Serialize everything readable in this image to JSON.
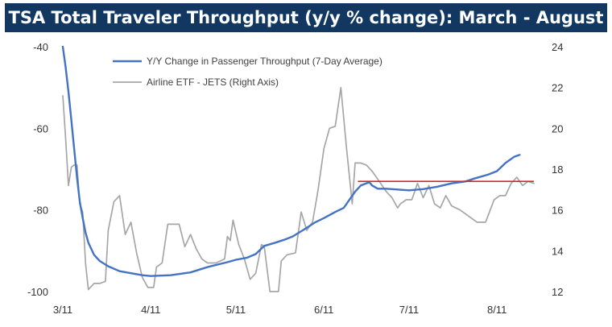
{
  "chart_data": {
    "type": "line",
    "title": "TSA Total Traveler Throughput (y/y % change): March - August",
    "x_ticks": [
      "3/11",
      "4/11",
      "5/11",
      "6/11",
      "7/11",
      "8/11"
    ],
    "y_left": {
      "ticks": [
        -40,
        -60,
        -80,
        -100
      ],
      "lim": [
        -100,
        -40
      ]
    },
    "y_right": {
      "ticks": [
        24,
        22,
        20,
        18,
        16,
        14,
        12
      ],
      "lim": [
        12,
        24
      ]
    },
    "reference_line": {
      "axis": "left",
      "value": -73,
      "from_date": "6/23",
      "to_date": "8/24",
      "color": "#d62b2b"
    },
    "legend_position": "top-center",
    "series": [
      {
        "name": "Y/Y Change in Passenger Throughput (7-Day Average)",
        "axis": "left",
        "color": "#4472c4",
        "points": [
          [
            "3/11",
            -40
          ],
          [
            "3/12",
            -45
          ],
          [
            "3/13",
            -51
          ],
          [
            "3/14",
            -58
          ],
          [
            "3/15",
            -65
          ],
          [
            "3/16",
            -72
          ],
          [
            "3/17",
            -78
          ],
          [
            "3/18",
            -82
          ],
          [
            "3/19",
            -85.5
          ],
          [
            "3/20",
            -88
          ],
          [
            "3/22",
            -91
          ],
          [
            "3/24",
            -92.5
          ],
          [
            "3/27",
            -93.8
          ],
          [
            "3/31",
            -95
          ],
          [
            "4/4",
            -95.5
          ],
          [
            "4/8",
            -96
          ],
          [
            "4/11",
            -96.2
          ],
          [
            "4/18",
            -96
          ],
          [
            "4/25",
            -95.3
          ],
          [
            "5/1",
            -94
          ],
          [
            "5/8",
            -92.8
          ],
          [
            "5/11",
            -92.2
          ],
          [
            "5/15",
            -91.7
          ],
          [
            "5/18",
            -90.8
          ],
          [
            "5/21",
            -88.8
          ],
          [
            "5/25",
            -88
          ],
          [
            "5/28",
            -87.3
          ],
          [
            "5/31",
            -86.5
          ],
          [
            "6/4",
            -84.8
          ],
          [
            "6/8",
            -83
          ],
          [
            "6/11",
            -82
          ],
          [
            "6/15",
            -80.5
          ],
          [
            "6/18",
            -79.5
          ],
          [
            "6/20",
            -77.5
          ],
          [
            "6/22",
            -75.5
          ],
          [
            "6/24",
            -74
          ],
          [
            "6/27",
            -73.2
          ],
          [
            "6/28",
            -74
          ],
          [
            "6/30",
            -74.8
          ],
          [
            "7/3",
            -74.8
          ],
          [
            "7/7",
            -75
          ],
          [
            "7/11",
            -75.2
          ],
          [
            "7/16",
            -74.9
          ],
          [
            "7/21",
            -74.3
          ],
          [
            "7/26",
            -73.5
          ],
          [
            "7/31",
            -73
          ],
          [
            "8/3",
            -72.3
          ],
          [
            "8/8",
            -71.3
          ],
          [
            "8/11",
            -70.5
          ],
          [
            "8/14",
            -68.5
          ],
          [
            "8/17",
            -67
          ],
          [
            "8/19",
            -66.5
          ]
        ]
      },
      {
        "name": "Airline ETF - JETS (Right Axis)",
        "axis": "right",
        "color": "#a6a6a6",
        "points": [
          [
            "3/11",
            21.6
          ],
          [
            "3/12",
            19.5
          ],
          [
            "3/13",
            17.2
          ],
          [
            "3/14",
            18.1
          ],
          [
            "3/15",
            18.2
          ],
          [
            "3/16",
            18.2
          ],
          [
            "3/17",
            16.3
          ],
          [
            "3/18",
            15.9
          ],
          [
            "3/19",
            13.4
          ],
          [
            "3/20",
            12.1
          ],
          [
            "3/22",
            12.4
          ],
          [
            "3/24",
            12.4
          ],
          [
            "3/26",
            12.5
          ],
          [
            "3/27",
            15
          ],
          [
            "3/29",
            16.4
          ],
          [
            "3/31",
            16.7
          ],
          [
            "4/2",
            14.8
          ],
          [
            "4/4",
            15.4
          ],
          [
            "4/6",
            13.9
          ],
          [
            "4/8",
            12.7
          ],
          [
            "4/10",
            12.2
          ],
          [
            "4/12",
            12.2
          ],
          [
            "4/13",
            13.2
          ],
          [
            "4/15",
            13.4
          ],
          [
            "4/17",
            15.3
          ],
          [
            "4/19",
            15.3
          ],
          [
            "4/21",
            15.3
          ],
          [
            "4/23",
            14.2
          ],
          [
            "4/25",
            14.8
          ],
          [
            "4/27",
            14.1
          ],
          [
            "4/29",
            13.6
          ],
          [
            "5/1",
            13.4
          ],
          [
            "5/4",
            13.4
          ],
          [
            "5/7",
            13.6
          ],
          [
            "5/8",
            14.7
          ],
          [
            "5/9",
            14.5
          ],
          [
            "5/10",
            15.5
          ],
          [
            "5/12",
            14.3
          ],
          [
            "5/14",
            13.6
          ],
          [
            "5/16",
            12.6
          ],
          [
            "5/18",
            12.9
          ],
          [
            "5/20",
            14.3
          ],
          [
            "5/21",
            14.2
          ],
          [
            "5/23",
            12
          ],
          [
            "5/26",
            12
          ],
          [
            "5/27",
            13.5
          ],
          [
            "5/29",
            13.8
          ],
          [
            "6/1",
            13.9
          ],
          [
            "6/3",
            15.9
          ],
          [
            "6/5",
            15
          ],
          [
            "6/7",
            15.4
          ],
          [
            "6/9",
            17
          ],
          [
            "6/11",
            19
          ],
          [
            "6/13",
            20
          ],
          [
            "6/15",
            20.1
          ],
          [
            "6/17",
            22
          ],
          [
            "6/19",
            19
          ],
          [
            "6/21",
            16.3
          ],
          [
            "6/22",
            18.3
          ],
          [
            "6/24",
            18.3
          ],
          [
            "6/26",
            18.2
          ],
          [
            "6/28",
            17.9
          ],
          [
            "7/1",
            17.3
          ],
          [
            "7/3",
            16.9
          ],
          [
            "7/5",
            16.6
          ],
          [
            "7/7",
            16.1
          ],
          [
            "7/8",
            16.3
          ],
          [
            "7/10",
            16.5
          ],
          [
            "7/12",
            16.5
          ],
          [
            "7/14",
            17.3
          ],
          [
            "7/16",
            16.6
          ],
          [
            "7/18",
            17.2
          ],
          [
            "7/20",
            16.3
          ],
          [
            "7/22",
            16.1
          ],
          [
            "7/24",
            16.7
          ],
          [
            "7/26",
            16.2
          ],
          [
            "7/29",
            16
          ],
          [
            "8/1",
            15.7
          ],
          [
            "8/4",
            15.4
          ],
          [
            "8/7",
            15.4
          ],
          [
            "8/10",
            16.5
          ],
          [
            "8/12",
            16.7
          ],
          [
            "8/14",
            16.7
          ],
          [
            "8/16",
            17.3
          ],
          [
            "8/18",
            17.6
          ],
          [
            "8/20",
            17.2
          ],
          [
            "8/22",
            17.4
          ],
          [
            "8/24",
            17.3
          ]
        ]
      }
    ]
  }
}
